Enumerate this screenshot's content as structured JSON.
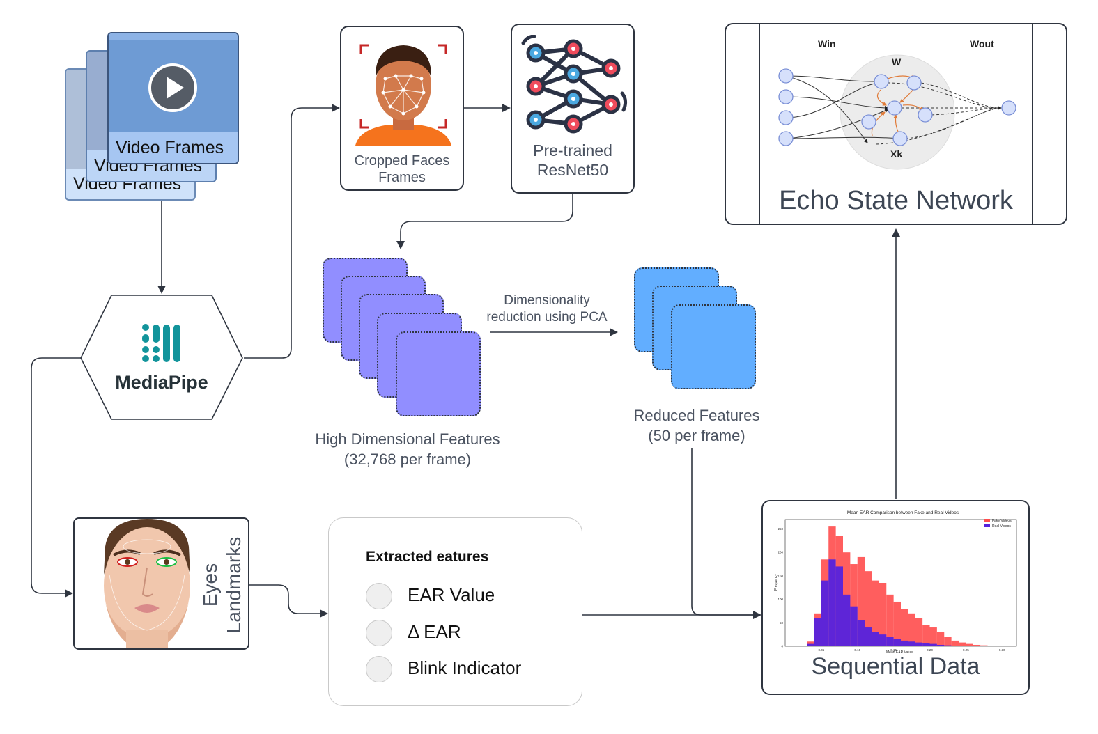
{
  "video_frames": {
    "labels": [
      "Video Frames",
      "Video Frames",
      "Video Frames"
    ]
  },
  "mediapipe": {
    "label": "MediaPipe"
  },
  "cropped_faces": {
    "label": "Cropped Faces Frames"
  },
  "resnet": {
    "label": "Pre-trained ResNet50"
  },
  "esn": {
    "title": "Echo State Network",
    "w_in": "Win",
    "w": "W",
    "w_out": "Wout",
    "x_k": "Xk"
  },
  "high_dim": {
    "label_line1": "High Dimensional Features",
    "label_line2": "(32,768 per frame)"
  },
  "pca": {
    "label_line1": "Dimensionality",
    "label_line2": "reduction using PCA"
  },
  "reduced": {
    "label_line1": "Reduced Features",
    "label_line2": "(50 per frame)"
  },
  "eyes": {
    "label_line1": "Eyes",
    "label_line2": "Landmarks"
  },
  "extracted": {
    "title": "Extracted eatures",
    "items": [
      "EAR Value",
      "Δ EAR",
      "Blink Indicator"
    ]
  },
  "sequential": {
    "title": "Sequential Data",
    "chart_title": "Mean EAR Comparison between Fake and Real Videos",
    "legend": [
      "Fake Videos",
      "Real Videos"
    ],
    "xlabel": "Mean EAR Value",
    "ylabel": "Frequency"
  },
  "chart_data": {
    "type": "bar",
    "title": "Mean EAR Comparison between Fake and Real Videos",
    "xlabel": "Mean EAR Value",
    "ylabel": "Frequency",
    "x_ticks": [
      "0.05",
      "0.10",
      "0.15",
      "0.20",
      "0.25",
      "0.30"
    ],
    "y_ticks": [
      "0",
      "50",
      "100",
      "150",
      "200",
      "250"
    ],
    "xlim": [
      0.0,
      0.32
    ],
    "ylim": [
      0,
      270
    ],
    "legend_position": "top-right",
    "bin_start": 0.03,
    "bin_width": 0.01,
    "series": [
      {
        "name": "Fake Videos",
        "color": "#ff4d4d",
        "values": [
          10,
          70,
          185,
          255,
          235,
          200,
          175,
          190,
          160,
          140,
          135,
          110,
          95,
          80,
          70,
          60,
          45,
          40,
          30,
          20,
          12,
          8,
          5,
          3,
          2,
          1,
          0,
          0
        ]
      },
      {
        "name": "Real Videos",
        "color": "#5522dd",
        "values": [
          5,
          60,
          140,
          185,
          170,
          110,
          85,
          55,
          40,
          30,
          25,
          20,
          15,
          12,
          10,
          8,
          6,
          5,
          3,
          2,
          1,
          0,
          0,
          0,
          0,
          0,
          0,
          0
        ]
      }
    ]
  },
  "colors": {
    "video_frame": "#6e9bd4",
    "high_dim_feature": "#918eff",
    "reduced_feature": "#62aeff",
    "mediapipe_teal": "#12949b"
  }
}
